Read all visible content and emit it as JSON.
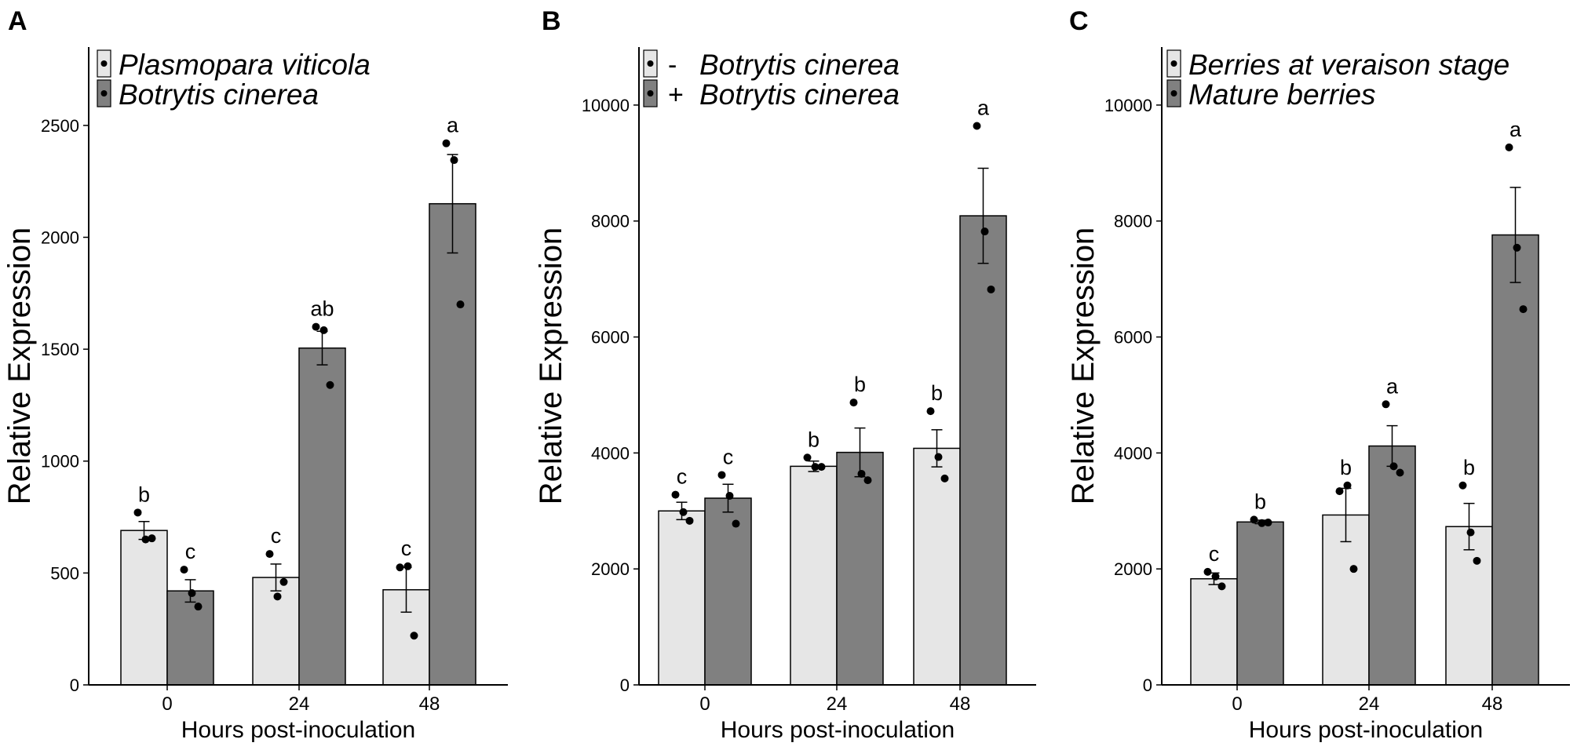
{
  "chart_data": [
    {
      "panel": "A",
      "type": "bar",
      "xlabel": "Hours post-inoculation",
      "ylabel": "Relative Expression",
      "categories": [
        "0",
        "24",
        "48"
      ],
      "ylim": [
        0,
        2850
      ],
      "yticks": [
        0,
        500,
        1000,
        1500,
        2000,
        2500
      ],
      "legend_position": "top-left",
      "series": [
        {
          "name": "Plasmopara viticola",
          "color": "#e6e6e6",
          "values": [
            690,
            480,
            425
          ],
          "errors": [
            40,
            60,
            100
          ],
          "points": [
            [
              770,
              650,
              655
            ],
            [
              585,
              395,
              460
            ],
            [
              525,
              530,
              220
            ]
          ],
          "letters": [
            "b",
            "c",
            "c"
          ]
        },
        {
          "name": "Botrytis cinerea",
          "color": "#808080",
          "values": [
            420,
            1505,
            2150
          ],
          "errors": [
            50,
            75,
            220
          ],
          "points": [
            [
              515,
              410,
              350
            ],
            [
              1600,
              1585,
              1340
            ],
            [
              2420,
              2345,
              1700
            ]
          ],
          "letters": [
            "c",
            "ab",
            "a"
          ]
        }
      ]
    },
    {
      "panel": "B",
      "type": "bar",
      "xlabel": "Hours post-inoculation",
      "ylabel": "Relative Expression",
      "categories": [
        "0",
        "24",
        "48"
      ],
      "ylim": [
        0,
        11000
      ],
      "yticks": [
        0,
        2000,
        4000,
        6000,
        8000,
        10000
      ],
      "legend_position": "top-left",
      "series": [
        {
          "name": "Botrytis cinerea",
          "prefix": "-",
          "color": "#e6e6e6",
          "values": [
            3000,
            3770,
            4080
          ],
          "errors": [
            150,
            90,
            320
          ],
          "points": [
            [
              3280,
              2980,
              2830
            ],
            [
              3920,
              3760,
              3760
            ],
            [
              4720,
              3930,
              3560
            ]
          ],
          "letters": [
            "c",
            "b",
            "b"
          ]
        },
        {
          "name": "Botrytis cinerea",
          "prefix": "+",
          "color": "#808080",
          "values": [
            3220,
            4010,
            8090
          ],
          "errors": [
            240,
            420,
            820
          ],
          "points": [
            [
              3620,
              3260,
              2780
            ],
            [
              4870,
              3640,
              3530
            ],
            [
              9640,
              7820,
              6820
            ]
          ],
          "letters": [
            "c",
            "b",
            "a"
          ]
        }
      ]
    },
    {
      "panel": "C",
      "type": "bar",
      "xlabel": "Hours post-inoculation",
      "ylabel": "Relative Expression",
      "categories": [
        "0",
        "24",
        "48"
      ],
      "ylim": [
        0,
        11000
      ],
      "yticks": [
        0,
        2000,
        4000,
        6000,
        8000,
        10000
      ],
      "legend_position": "top-left",
      "series": [
        {
          "name": "Berries at veraison stage",
          "color": "#e6e6e6",
          "values": [
            1830,
            2930,
            2730
          ],
          "errors": [
            100,
            460,
            400
          ],
          "points": [
            [
              1950,
              1870,
              1700
            ],
            [
              3340,
              3440,
              2000
            ],
            [
              3440,
              2630,
              2140
            ]
          ],
          "letters": [
            "c",
            "b",
            "b"
          ]
        },
        {
          "name": "Mature berries",
          "color": "#808080",
          "values": [
            2810,
            4120,
            7760
          ],
          "errors": [
            30,
            350,
            820
          ],
          "points": [
            [
              2850,
              2790,
              2800
            ],
            [
              4840,
              3770,
              3660
            ],
            [
              9270,
              7540,
              6480
            ]
          ],
          "letters": [
            "b",
            "a",
            "a"
          ]
        }
      ]
    }
  ]
}
